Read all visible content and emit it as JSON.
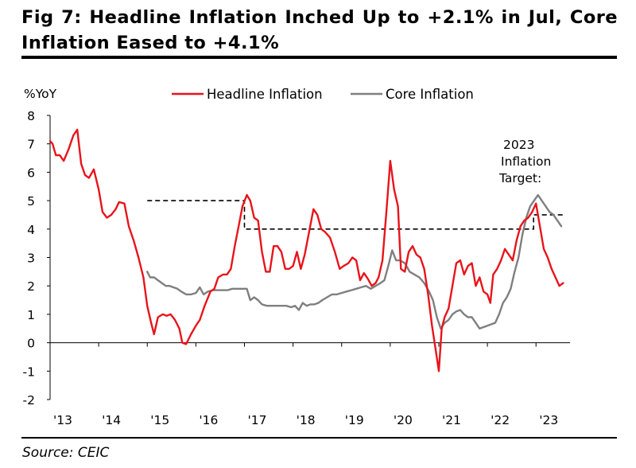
{
  "title": "Fig 7: Headline Inflation Inched Up to +2.1% in Jul, Core Inflation Eased to +4.1%",
  "source": "Source: CEIC",
  "chart_data": {
    "type": "line",
    "title": "Fig 7: Headline Inflation Inched Up to +2.1% in Jul, Core Inflation Eased to +4.1%",
    "ylabel": "%YoY",
    "xlabel": "",
    "ylim": [
      -2,
      8
    ],
    "yticks": [
      "8",
      "7",
      "6",
      "5",
      "4",
      "3",
      "2",
      "1",
      "0",
      "-1",
      "-2"
    ],
    "xlim": [
      2013.0,
      2023.7
    ],
    "xticks": [
      {
        "label": "'13",
        "x": 2013.0
      },
      {
        "label": "'14",
        "x": 2014.0
      },
      {
        "label": "'15",
        "x": 2015.0
      },
      {
        "label": "'16",
        "x": 2016.0
      },
      {
        "label": "'17",
        "x": 2017.0
      },
      {
        "label": "'18",
        "x": 2018.0
      },
      {
        "label": "'19",
        "x": 2019.0
      },
      {
        "label": "'20",
        "x": 2020.0
      },
      {
        "label": "'21",
        "x": 2021.0
      },
      {
        "label": "'22",
        "x": 2022.0
      },
      {
        "label": "'23",
        "x": 2023.0
      }
    ],
    "series": [
      {
        "name": "Headline Inflation",
        "color": "#e8141b",
        "points": [
          [
            2013.0,
            7.1
          ],
          [
            2013.05,
            7.0
          ],
          [
            2013.12,
            6.6
          ],
          [
            2013.2,
            6.6
          ],
          [
            2013.28,
            6.4
          ],
          [
            2013.38,
            6.8
          ],
          [
            2013.48,
            7.3
          ],
          [
            2013.56,
            7.5
          ],
          [
            2013.64,
            6.3
          ],
          [
            2013.72,
            5.9
          ],
          [
            2013.8,
            5.8
          ],
          [
            2013.9,
            6.1
          ],
          [
            2014.0,
            5.4
          ],
          [
            2014.08,
            4.6
          ],
          [
            2014.17,
            4.4
          ],
          [
            2014.26,
            4.5
          ],
          [
            2014.35,
            4.7
          ],
          [
            2014.42,
            4.95
          ],
          [
            2014.53,
            4.9
          ],
          [
            2014.62,
            4.1
          ],
          [
            2014.72,
            3.6
          ],
          [
            2014.82,
            3.0
          ],
          [
            2014.92,
            2.3
          ],
          [
            2015.0,
            1.3
          ],
          [
            2015.08,
            0.7
          ],
          [
            2015.14,
            0.3
          ],
          [
            2015.22,
            0.9
          ],
          [
            2015.32,
            1.0
          ],
          [
            2015.4,
            0.95
          ],
          [
            2015.48,
            1.0
          ],
          [
            2015.57,
            0.8
          ],
          [
            2015.66,
            0.5
          ],
          [
            2015.72,
            0.0
          ],
          [
            2015.8,
            -0.05
          ],
          [
            2015.9,
            0.3
          ],
          [
            2016.0,
            0.6
          ],
          [
            2016.08,
            0.8
          ],
          [
            2016.18,
            1.3
          ],
          [
            2016.3,
            1.8
          ],
          [
            2016.38,
            1.9
          ],
          [
            2016.46,
            2.3
          ],
          [
            2016.56,
            2.4
          ],
          [
            2016.64,
            2.4
          ],
          [
            2016.72,
            2.6
          ],
          [
            2016.8,
            3.4
          ],
          [
            2016.88,
            4.1
          ],
          [
            2016.96,
            4.8
          ],
          [
            2017.05,
            5.2
          ],
          [
            2017.12,
            5.0
          ],
          [
            2017.2,
            4.4
          ],
          [
            2017.28,
            4.3
          ],
          [
            2017.36,
            3.2
          ],
          [
            2017.44,
            2.5
          ],
          [
            2017.52,
            2.5
          ],
          [
            2017.6,
            3.4
          ],
          [
            2017.68,
            3.4
          ],
          [
            2017.76,
            3.2
          ],
          [
            2017.84,
            2.6
          ],
          [
            2017.92,
            2.6
          ],
          [
            2018.0,
            2.7
          ],
          [
            2018.08,
            3.2
          ],
          [
            2018.16,
            2.6
          ],
          [
            2018.24,
            3.1
          ],
          [
            2018.33,
            3.9
          ],
          [
            2018.42,
            4.7
          ],
          [
            2018.5,
            4.5
          ],
          [
            2018.58,
            4.0
          ],
          [
            2018.66,
            3.9
          ],
          [
            2018.76,
            3.7
          ],
          [
            2018.86,
            3.2
          ],
          [
            2018.96,
            2.6
          ],
          [
            2019.04,
            2.7
          ],
          [
            2019.14,
            2.8
          ],
          [
            2019.22,
            3.0
          ],
          [
            2019.3,
            2.9
          ],
          [
            2019.38,
            2.2
          ],
          [
            2019.46,
            2.45
          ],
          [
            2019.54,
            2.25
          ],
          [
            2019.62,
            2.0
          ],
          [
            2019.7,
            2.1
          ],
          [
            2019.76,
            2.3
          ],
          [
            2019.84,
            2.9
          ],
          [
            2019.92,
            4.6
          ],
          [
            2020.0,
            6.4
          ],
          [
            2020.08,
            5.4
          ],
          [
            2020.16,
            4.8
          ],
          [
            2020.22,
            2.6
          ],
          [
            2020.3,
            2.5
          ],
          [
            2020.38,
            3.2
          ],
          [
            2020.46,
            3.4
          ],
          [
            2020.54,
            3.1
          ],
          [
            2020.62,
            3.0
          ],
          [
            2020.7,
            2.6
          ],
          [
            2020.78,
            1.7
          ],
          [
            2020.86,
            0.6
          ],
          [
            2020.94,
            -0.3
          ],
          [
            2021.0,
            -1.0
          ],
          [
            2021.06,
            0.5
          ],
          [
            2021.12,
            0.9
          ],
          [
            2021.2,
            1.2
          ],
          [
            2021.28,
            2.0
          ],
          [
            2021.36,
            2.8
          ],
          [
            2021.44,
            2.9
          ],
          [
            2021.52,
            2.4
          ],
          [
            2021.6,
            2.7
          ],
          [
            2021.68,
            2.8
          ],
          [
            2021.76,
            2.0
          ],
          [
            2021.84,
            2.3
          ],
          [
            2021.92,
            1.8
          ],
          [
            2022.0,
            1.7
          ],
          [
            2022.06,
            1.4
          ],
          [
            2022.12,
            2.4
          ],
          [
            2022.2,
            2.6
          ],
          [
            2022.28,
            2.9
          ],
          [
            2022.36,
            3.3
          ],
          [
            2022.44,
            3.1
          ],
          [
            2022.52,
            2.9
          ],
          [
            2022.6,
            3.6
          ],
          [
            2022.68,
            4.1
          ],
          [
            2022.76,
            4.3
          ],
          [
            2022.84,
            4.4
          ],
          [
            2022.92,
            4.6
          ],
          [
            2023.0,
            4.9
          ],
          [
            2023.08,
            4.1
          ],
          [
            2023.16,
            3.3
          ],
          [
            2023.24,
            3.0
          ],
          [
            2023.32,
            2.6
          ],
          [
            2023.4,
            2.3
          ],
          [
            2023.48,
            2.0
          ],
          [
            2023.56,
            2.1
          ]
        ]
      },
      {
        "name": "Core Inflation",
        "color": "#7f7f7f",
        "points": [
          [
            2015.0,
            2.5
          ],
          [
            2015.06,
            2.3
          ],
          [
            2015.14,
            2.3
          ],
          [
            2015.22,
            2.2
          ],
          [
            2015.3,
            2.1
          ],
          [
            2015.38,
            2.0
          ],
          [
            2015.46,
            2.0
          ],
          [
            2015.54,
            1.95
          ],
          [
            2015.62,
            1.9
          ],
          [
            2015.7,
            1.8
          ],
          [
            2015.8,
            1.7
          ],
          [
            2015.9,
            1.7
          ],
          [
            2016.0,
            1.75
          ],
          [
            2016.08,
            1.95
          ],
          [
            2016.16,
            1.7
          ],
          [
            2016.25,
            1.8
          ],
          [
            2016.35,
            1.85
          ],
          [
            2016.45,
            1.85
          ],
          [
            2016.55,
            1.85
          ],
          [
            2016.65,
            1.85
          ],
          [
            2016.75,
            1.9
          ],
          [
            2016.85,
            1.9
          ],
          [
            2016.95,
            1.9
          ],
          [
            2017.05,
            1.9
          ],
          [
            2017.12,
            1.5
          ],
          [
            2017.2,
            1.6
          ],
          [
            2017.28,
            1.5
          ],
          [
            2017.36,
            1.35
          ],
          [
            2017.46,
            1.3
          ],
          [
            2017.56,
            1.3
          ],
          [
            2017.66,
            1.3
          ],
          [
            2017.76,
            1.3
          ],
          [
            2017.86,
            1.3
          ],
          [
            2017.96,
            1.25
          ],
          [
            2018.04,
            1.3
          ],
          [
            2018.12,
            1.15
          ],
          [
            2018.2,
            1.4
          ],
          [
            2018.28,
            1.3
          ],
          [
            2018.36,
            1.35
          ],
          [
            2018.44,
            1.35
          ],
          [
            2018.52,
            1.4
          ],
          [
            2018.6,
            1.5
          ],
          [
            2018.7,
            1.6
          ],
          [
            2018.8,
            1.7
          ],
          [
            2018.9,
            1.7
          ],
          [
            2019.0,
            1.75
          ],
          [
            2019.1,
            1.8
          ],
          [
            2019.2,
            1.85
          ],
          [
            2019.3,
            1.9
          ],
          [
            2019.4,
            1.95
          ],
          [
            2019.5,
            2.0
          ],
          [
            2019.6,
            1.9
          ],
          [
            2019.7,
            2.0
          ],
          [
            2019.8,
            2.1
          ],
          [
            2019.88,
            2.2
          ],
          [
            2019.96,
            2.7
          ],
          [
            2020.04,
            3.25
          ],
          [
            2020.12,
            2.9
          ],
          [
            2020.2,
            2.9
          ],
          [
            2020.3,
            2.8
          ],
          [
            2020.4,
            2.5
          ],
          [
            2020.5,
            2.4
          ],
          [
            2020.6,
            2.3
          ],
          [
            2020.7,
            2.1
          ],
          [
            2020.8,
            1.8
          ],
          [
            2020.88,
            1.5
          ],
          [
            2020.96,
            0.9
          ],
          [
            2021.04,
            0.5
          ],
          [
            2021.12,
            0.7
          ],
          [
            2021.2,
            0.8
          ],
          [
            2021.28,
            1.0
          ],
          [
            2021.36,
            1.1
          ],
          [
            2021.44,
            1.15
          ],
          [
            2021.52,
            1.0
          ],
          [
            2021.6,
            0.9
          ],
          [
            2021.68,
            0.9
          ],
          [
            2021.76,
            0.7
          ],
          [
            2021.84,
            0.5
          ],
          [
            2021.92,
            0.55
          ],
          [
            2022.0,
            0.6
          ],
          [
            2022.08,
            0.65
          ],
          [
            2022.16,
            0.7
          ],
          [
            2022.24,
            1.0
          ],
          [
            2022.32,
            1.4
          ],
          [
            2022.4,
            1.6
          ],
          [
            2022.48,
            1.9
          ],
          [
            2022.56,
            2.5
          ],
          [
            2022.64,
            3.0
          ],
          [
            2022.72,
            3.8
          ],
          [
            2022.8,
            4.4
          ],
          [
            2022.88,
            4.8
          ],
          [
            2022.96,
            5.0
          ],
          [
            2023.04,
            5.2
          ],
          [
            2023.12,
            5.0
          ],
          [
            2023.2,
            4.8
          ],
          [
            2023.28,
            4.6
          ],
          [
            2023.36,
            4.5
          ],
          [
            2023.44,
            4.3
          ],
          [
            2023.52,
            4.1
          ]
        ]
      }
    ],
    "target_band": {
      "name": "Inflation Target",
      "style": "dashed",
      "color": "#000000",
      "segments": [
        {
          "from": 2015.0,
          "to": 2017.0,
          "value": 5.0
        },
        {
          "from": 2017.0,
          "to": 2022.95,
          "value": 4.0
        },
        {
          "from": 2022.95,
          "to": 2023.55,
          "value": 4.5
        }
      ]
    },
    "annotation": [
      "2023",
      "Inflation",
      "Target:"
    ],
    "legend_position": "top-center"
  }
}
